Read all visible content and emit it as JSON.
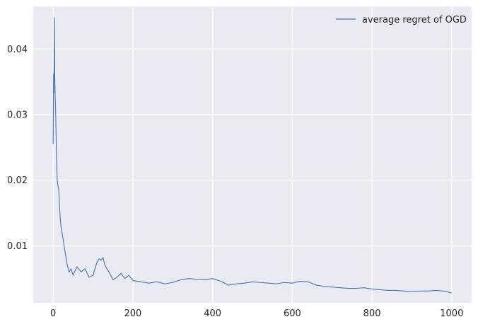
{
  "chart_data": {
    "type": "line",
    "title": "",
    "xlabel": "",
    "ylabel": "",
    "xlim": [
      -50,
      1050
    ],
    "ylim": [
      0.0013,
      0.0465
    ],
    "xticks": [
      0,
      200,
      400,
      600,
      800,
      1000
    ],
    "xtick_labels": [
      "0",
      "200",
      "400",
      "600",
      "800",
      "1000"
    ],
    "yticks": [
      0.01,
      0.02,
      0.03,
      0.04
    ],
    "ytick_labels": [
      "0.01",
      "0.02",
      "0.03",
      "0.04"
    ],
    "grid": true,
    "legend": {
      "placement": "top-right",
      "entries": [
        "average regret of OGD"
      ]
    },
    "colors": {
      "background": "#eaeaf2",
      "grid": "#ffffff",
      "line": "#4c72b0"
    },
    "series": [
      {
        "name": "average regret of OGD",
        "x": [
          0,
          1,
          2,
          3,
          4,
          5,
          6,
          7,
          8,
          9,
          10,
          12,
          14,
          16,
          18,
          20,
          25,
          30,
          35,
          40,
          45,
          50,
          55,
          60,
          70,
          80,
          90,
          100,
          110,
          115,
          120,
          125,
          130,
          140,
          150,
          160,
          170,
          180,
          190,
          200,
          220,
          240,
          260,
          280,
          300,
          320,
          340,
          360,
          380,
          400,
          420,
          440,
          460,
          480,
          500,
          520,
          540,
          560,
          580,
          600,
          620,
          640,
          660,
          680,
          700,
          720,
          740,
          760,
          780,
          800,
          820,
          840,
          860,
          880,
          900,
          920,
          940,
          960,
          980,
          1000
        ],
        "values": [
          0.0255,
          0.0362,
          0.0333,
          0.0448,
          0.036,
          0.033,
          0.031,
          0.028,
          0.025,
          0.0225,
          0.02,
          0.0192,
          0.0186,
          0.016,
          0.014,
          0.0128,
          0.011,
          0.009,
          0.0072,
          0.006,
          0.0065,
          0.0055,
          0.0062,
          0.0068,
          0.006,
          0.0065,
          0.0052,
          0.0055,
          0.0075,
          0.008,
          0.0078,
          0.0082,
          0.007,
          0.006,
          0.0048,
          0.0052,
          0.0058,
          0.005,
          0.0055,
          0.0047,
          0.0045,
          0.0043,
          0.0045,
          0.0042,
          0.0044,
          0.0048,
          0.005,
          0.0049,
          0.0048,
          0.005,
          0.0046,
          0.004,
          0.0042,
          0.0043,
          0.0045,
          0.0044,
          0.0043,
          0.0042,
          0.0044,
          0.0043,
          0.0046,
          0.0045,
          0.004,
          0.0038,
          0.0037,
          0.0036,
          0.0035,
          0.0035,
          0.0036,
          0.0034,
          0.0033,
          0.0032,
          0.0032,
          0.0031,
          0.003,
          0.0031,
          0.0031,
          0.0032,
          0.0031,
          0.0028
        ]
      }
    ]
  }
}
